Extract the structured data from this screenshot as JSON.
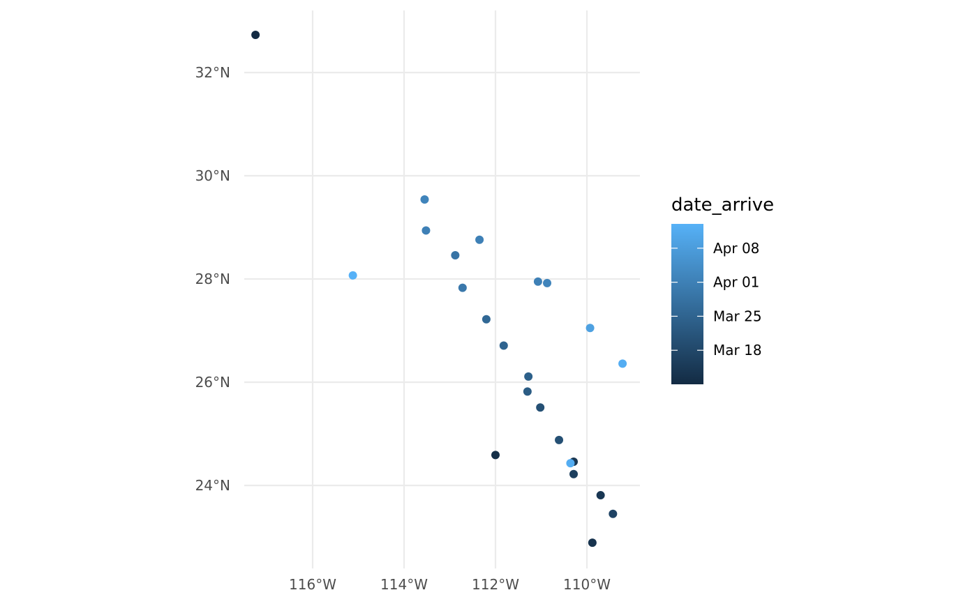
{
  "chart_data": {
    "type": "scatter",
    "title": "",
    "xlabel": "",
    "ylabel": "",
    "xlim": [
      -117.3,
      -108.9
    ],
    "ylim": [
      22.6,
      32.9
    ],
    "x_ticks": [
      -116,
      -114,
      -112,
      -110
    ],
    "x_tick_labels": [
      "116°W",
      "114°W",
      "112°W",
      "110°W"
    ],
    "y_ticks": [
      24,
      26,
      28,
      30,
      32
    ],
    "y_tick_labels": [
      "24°N",
      "26°N",
      "28°N",
      "30°N",
      "32°N"
    ],
    "grid": true,
    "color": {
      "name": "date_arrive",
      "low_color": "#132b43",
      "high_color": "#56b1f7",
      "range": [
        "2021-03-11",
        "2021-04-13"
      ],
      "breaks": [
        "2021-03-18",
        "2021-03-25",
        "2021-04-01",
        "2021-04-08"
      ],
      "break_labels": [
        "Mar 18",
        "Mar 25",
        "Apr 01",
        "Apr 08"
      ]
    },
    "legend_position": "right",
    "points": [
      {
        "lon": -117.25,
        "lat": 32.73,
        "date": "2021-03-11"
      },
      {
        "lon": -113.55,
        "lat": 29.54,
        "date": "2021-04-02"
      },
      {
        "lon": -113.52,
        "lat": 28.94,
        "date": "2021-04-01"
      },
      {
        "lon": -112.35,
        "lat": 28.76,
        "date": "2021-04-01"
      },
      {
        "lon": -112.88,
        "lat": 28.46,
        "date": "2021-03-29"
      },
      {
        "lon": -115.12,
        "lat": 28.07,
        "date": "2021-04-13"
      },
      {
        "lon": -112.72,
        "lat": 27.83,
        "date": "2021-03-30"
      },
      {
        "lon": -111.07,
        "lat": 27.95,
        "date": "2021-04-01"
      },
      {
        "lon": -110.87,
        "lat": 27.92,
        "date": "2021-04-02"
      },
      {
        "lon": -112.2,
        "lat": 27.22,
        "date": "2021-03-26"
      },
      {
        "lon": -109.93,
        "lat": 27.05,
        "date": "2021-04-09"
      },
      {
        "lon": -109.22,
        "lat": 26.36,
        "date": "2021-04-12"
      },
      {
        "lon": -111.82,
        "lat": 26.71,
        "date": "2021-03-25"
      },
      {
        "lon": -111.28,
        "lat": 26.11,
        "date": "2021-03-24"
      },
      {
        "lon": -111.3,
        "lat": 25.82,
        "date": "2021-03-23"
      },
      {
        "lon": -111.02,
        "lat": 25.51,
        "date": "2021-03-20"
      },
      {
        "lon": -110.61,
        "lat": 24.88,
        "date": "2021-03-20"
      },
      {
        "lon": -112.0,
        "lat": 24.59,
        "date": "2021-03-12"
      },
      {
        "lon": -110.29,
        "lat": 24.46,
        "date": "2021-03-14"
      },
      {
        "lon": -110.36,
        "lat": 24.43,
        "date": "2021-04-12"
      },
      {
        "lon": -110.29,
        "lat": 24.22,
        "date": "2021-03-16"
      },
      {
        "lon": -109.7,
        "lat": 23.81,
        "date": "2021-03-14"
      },
      {
        "lon": -109.43,
        "lat": 23.45,
        "date": "2021-03-17"
      },
      {
        "lon": -109.88,
        "lat": 22.89,
        "date": "2021-03-13"
      }
    ]
  }
}
